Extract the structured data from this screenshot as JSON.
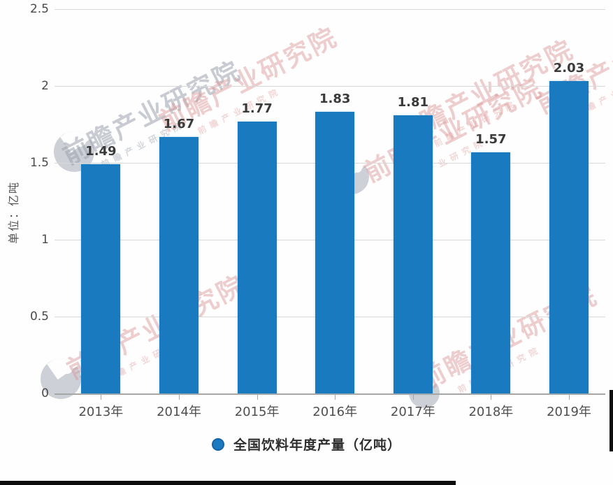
{
  "chart_data": {
    "type": "bar",
    "title": "",
    "categories": [
      "2013年",
      "2014年",
      "2015年",
      "2016年",
      "2017年",
      "2018年",
      "2019年"
    ],
    "values": [
      1.49,
      1.67,
      1.77,
      1.83,
      1.81,
      1.57,
      2.03
    ],
    "value_labels": [
      "1.49",
      "1.67",
      "1.77",
      "1.83",
      "1.81",
      "1.57",
      "2.03"
    ],
    "xlabel": "",
    "ylabel": "单位：亿吨",
    "ylim": [
      0,
      2.5
    ],
    "yticks": [
      0,
      0.5,
      1,
      1.5,
      2,
      2.5
    ],
    "ytick_labels": [
      "0",
      "0.5",
      "1",
      "1.5",
      "2",
      "2.5"
    ],
    "grid": true,
    "legend": "全国饮料年度产量（亿吨）",
    "legend_position": "bottom",
    "bar_color": "#1a7ac0"
  },
  "watermark": {
    "text": "前瞻产业研究院"
  },
  "colors": {
    "bar": "#1a7ac0",
    "gridline": "#d9d9d9",
    "axis": "#a6a6a6",
    "tick_text": "#4a4a4a",
    "data_label": "#3a3a3a",
    "watermark_grey": "#9aa2ad",
    "watermark_pink": "#d99393"
  }
}
